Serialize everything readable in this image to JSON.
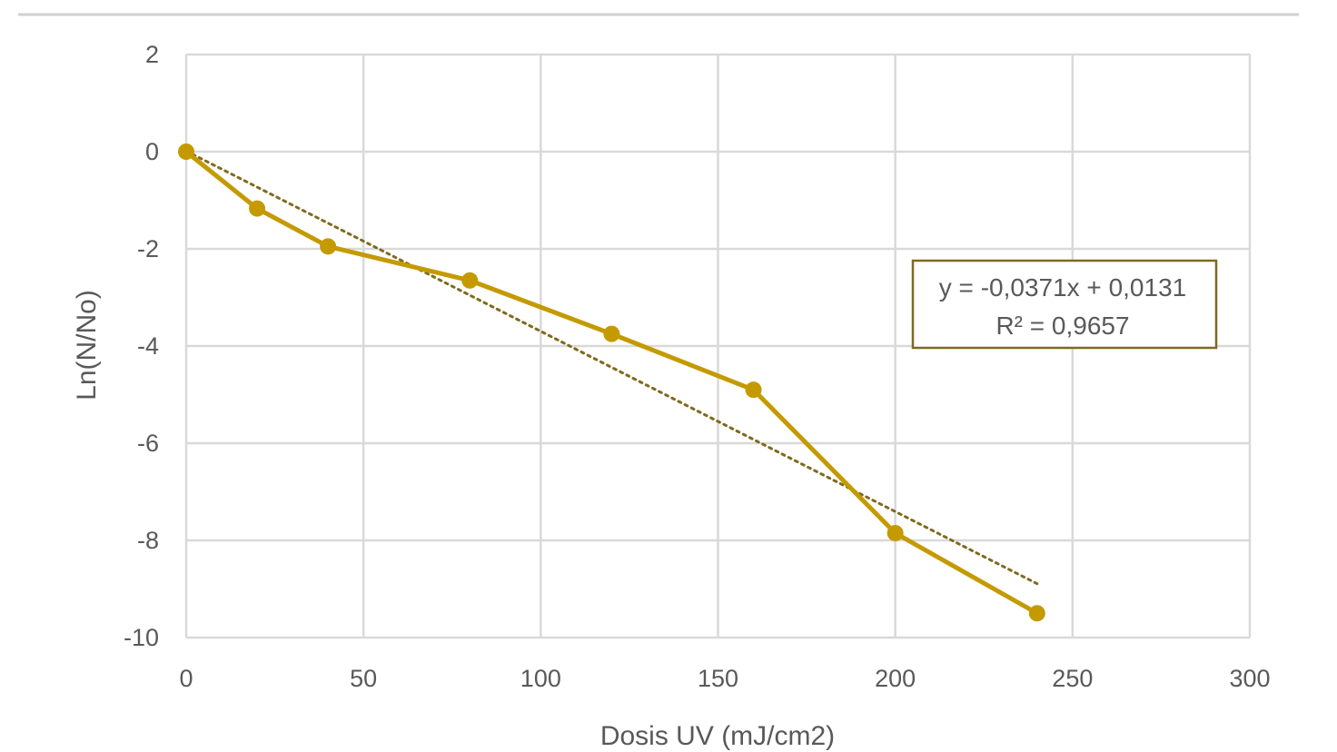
{
  "chart_data": {
    "type": "scatter",
    "title": "",
    "xlabel": "Dosis UV (mJ/cm2)",
    "ylabel": "Ln(N/No)",
    "xlim": [
      0,
      300
    ],
    "ylim": [
      -10,
      2
    ],
    "x_ticks": [
      0,
      50,
      100,
      150,
      200,
      250,
      300
    ],
    "y_ticks": [
      2,
      0,
      -2,
      -4,
      -6,
      -8,
      -10
    ],
    "x_tick_labels": [
      "0",
      "50",
      "100",
      "150",
      "200",
      "250",
      "300"
    ],
    "y_tick_labels": [
      "2",
      "0",
      "-2",
      "-4",
      "-6",
      "-8",
      "-10"
    ],
    "grid": true,
    "legend": "none",
    "series": [
      {
        "style": "line-markers",
        "color": "#C49A00",
        "x": [
          0,
          20,
          40,
          80,
          120,
          160,
          200,
          240
        ],
        "y": [
          0,
          -1.17,
          -1.95,
          -2.65,
          -3.75,
          -4.9,
          -7.85,
          -9.5
        ]
      }
    ],
    "trendline": {
      "type": "linear",
      "style": "dotted",
      "color": "#7F6A1E",
      "slope": -0.0371,
      "intercept": 0.0131,
      "x_range": [
        0,
        240
      ],
      "equation": "y = -0,0371x + 0,0131",
      "r_squared": "R² = 0,9657"
    }
  },
  "colors": {
    "grid": "#D9D9D9",
    "top_rule": "#D0D0D0",
    "text": "#595959",
    "annotation_border": "#7F6A1E"
  }
}
